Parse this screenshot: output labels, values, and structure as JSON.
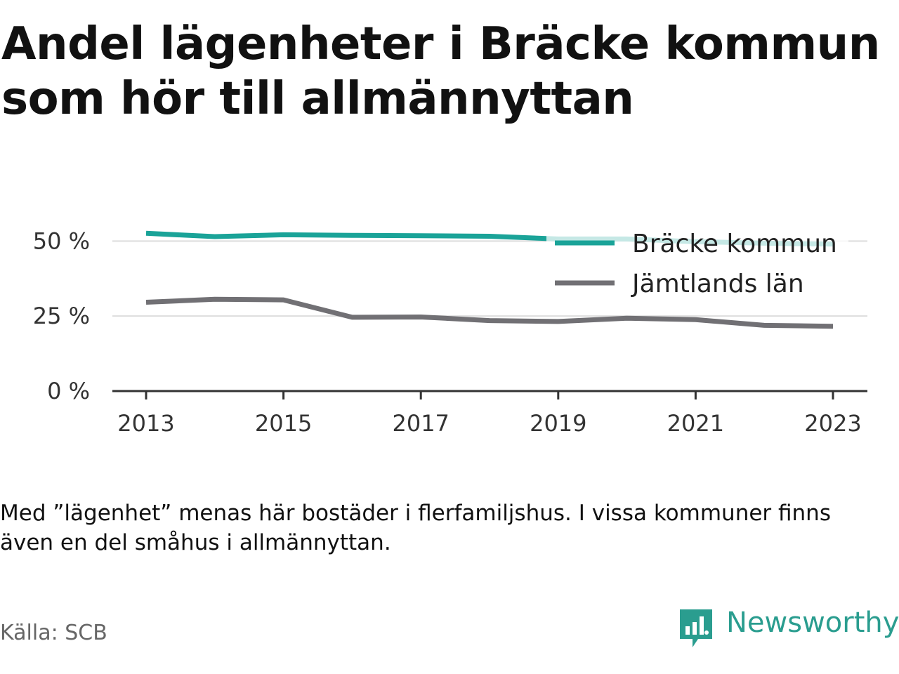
{
  "title": "Andel lägenheter i Bräcke kommun som hör till allmännyttan",
  "note": "Med ”lägenhet” menas här bostäder i flerfamiljshus. I vissa kommuner finns även en del småhus i allmännyttan.",
  "source": "Källa: SCB",
  "brand": {
    "name": "Newsworthy",
    "icon": "newsworthy-logo-icon",
    "color": "#2a9d8f"
  },
  "chart_data": {
    "type": "line",
    "x": [
      2013,
      2014,
      2015,
      2016,
      2017,
      2018,
      2019,
      2020,
      2021,
      2022,
      2023
    ],
    "x_ticks": [
      "2013",
      "2015",
      "2017",
      "2019",
      "2021",
      "2023"
    ],
    "y_ticks": [
      "0 %",
      "25 %",
      "50 %"
    ],
    "ylim": [
      0,
      55
    ],
    "grid": true,
    "legend_position": "top-right",
    "series": [
      {
        "name": "Bräcke kommun",
        "color": "#1aa398",
        "values": [
          52.6,
          51.5,
          52.1,
          51.9,
          51.8,
          51.6,
          50.7,
          50.7,
          49.8,
          49.3,
          49.0
        ]
      },
      {
        "name": "Jämtlands län",
        "color": "#717074",
        "values": [
          29.6,
          30.6,
          30.4,
          24.6,
          24.7,
          23.5,
          23.2,
          24.3,
          23.8,
          21.9,
          21.6
        ]
      }
    ]
  }
}
